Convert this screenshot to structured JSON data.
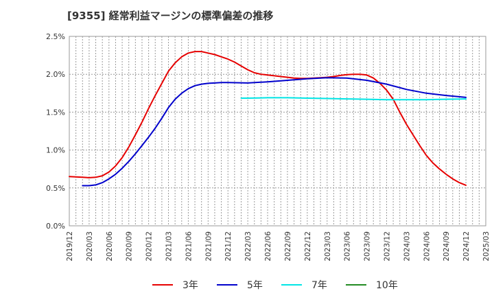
{
  "title": "[9355]  経常利益マージンの標準偏差の推移",
  "chart_data": {
    "type": "line",
    "title": "[9355]  経常利益マージンの標準偏差の推移",
    "xlabel": "",
    "ylabel": "",
    "x_ticks": [
      "2019/12",
      "2020/03",
      "2020/06",
      "2020/09",
      "2020/12",
      "2021/03",
      "2021/06",
      "2021/09",
      "2021/12",
      "2022/03",
      "2022/06",
      "2022/09",
      "2022/12",
      "2023/03",
      "2023/06",
      "2023/09",
      "2023/12",
      "2024/03",
      "2024/06",
      "2024/09",
      "2024/12",
      "2025/03"
    ],
    "y_ticks": [
      "0.0%",
      "0.5%",
      "1.0%",
      "1.5%",
      "2.0%",
      "2.5%"
    ],
    "ylim": [
      0,
      2.5
    ],
    "grid": true,
    "legend_position": "bottom",
    "series": [
      {
        "name": "3年",
        "color": "#e60000",
        "points": [
          [
            "2019/12",
            0.65
          ],
          [
            "2020/01",
            0.645
          ],
          [
            "2020/02",
            0.64
          ],
          [
            "2020/03",
            0.635
          ],
          [
            "2020/04",
            0.64
          ],
          [
            "2020/05",
            0.66
          ],
          [
            "2020/06",
            0.71
          ],
          [
            "2020/07",
            0.79
          ],
          [
            "2020/08",
            0.9
          ],
          [
            "2020/09",
            1.04
          ],
          [
            "2020/10",
            1.2
          ],
          [
            "2020/11",
            1.37
          ],
          [
            "2020/12",
            1.55
          ],
          [
            "2021/01",
            1.72
          ],
          [
            "2021/02",
            1.88
          ],
          [
            "2021/03",
            2.04
          ],
          [
            "2021/04",
            2.15
          ],
          [
            "2021/05",
            2.23
          ],
          [
            "2021/06",
            2.28
          ],
          [
            "2021/07",
            2.3
          ],
          [
            "2021/08",
            2.3
          ],
          [
            "2021/09",
            2.28
          ],
          [
            "2021/10",
            2.26
          ],
          [
            "2021/11",
            2.23
          ],
          [
            "2021/12",
            2.2
          ],
          [
            "2022/01",
            2.16
          ],
          [
            "2022/02",
            2.11
          ],
          [
            "2022/03",
            2.06
          ],
          [
            "2022/04",
            2.02
          ],
          [
            "2022/05",
            2.0
          ],
          [
            "2022/06",
            1.99
          ],
          [
            "2022/07",
            1.98
          ],
          [
            "2022/08",
            1.97
          ],
          [
            "2022/09",
            1.96
          ],
          [
            "2022/10",
            1.95
          ],
          [
            "2022/11",
            1.945
          ],
          [
            "2022/12",
            1.945
          ],
          [
            "2023/01",
            1.95
          ],
          [
            "2023/02",
            1.955
          ],
          [
            "2023/03",
            1.96
          ],
          [
            "2023/04",
            1.97
          ],
          [
            "2023/05",
            1.985
          ],
          [
            "2023/06",
            1.995
          ],
          [
            "2023/07",
            2.0
          ],
          [
            "2023/08",
            2.0
          ],
          [
            "2023/09",
            1.99
          ],
          [
            "2023/10",
            1.95
          ],
          [
            "2023/11",
            1.88
          ],
          [
            "2023/12",
            1.79
          ],
          [
            "2024/01",
            1.67
          ],
          [
            "2024/02",
            1.5
          ],
          [
            "2024/03",
            1.34
          ],
          [
            "2024/04",
            1.2
          ],
          [
            "2024/05",
            1.06
          ],
          [
            "2024/06",
            0.93
          ],
          [
            "2024/07",
            0.83
          ],
          [
            "2024/08",
            0.75
          ],
          [
            "2024/09",
            0.68
          ],
          [
            "2024/10",
            0.62
          ],
          [
            "2024/11",
            0.57
          ],
          [
            "2024/12",
            0.535
          ]
        ]
      },
      {
        "name": "5年",
        "color": "#0000cc",
        "points": [
          [
            "2020/02",
            0.53
          ],
          [
            "2020/03",
            0.53
          ],
          [
            "2020/04",
            0.54
          ],
          [
            "2020/05",
            0.57
          ],
          [
            "2020/06",
            0.62
          ],
          [
            "2020/07",
            0.68
          ],
          [
            "2020/08",
            0.76
          ],
          [
            "2020/09",
            0.85
          ],
          [
            "2020/10",
            0.95
          ],
          [
            "2020/11",
            1.06
          ],
          [
            "2020/12",
            1.17
          ],
          [
            "2021/01",
            1.29
          ],
          [
            "2021/02",
            1.42
          ],
          [
            "2021/03",
            1.56
          ],
          [
            "2021/04",
            1.67
          ],
          [
            "2021/05",
            1.75
          ],
          [
            "2021/06",
            1.81
          ],
          [
            "2021/07",
            1.85
          ],
          [
            "2021/08",
            1.87
          ],
          [
            "2021/09",
            1.88
          ],
          [
            "2021/10",
            1.885
          ],
          [
            "2021/11",
            1.89
          ],
          [
            "2021/12",
            1.89
          ],
          [
            "2022/03",
            1.885
          ],
          [
            "2022/06",
            1.9
          ],
          [
            "2022/09",
            1.92
          ],
          [
            "2022/12",
            1.94
          ],
          [
            "2023/03",
            1.955
          ],
          [
            "2023/06",
            1.95
          ],
          [
            "2023/09",
            1.92
          ],
          [
            "2023/12",
            1.87
          ],
          [
            "2024/03",
            1.8
          ],
          [
            "2024/06",
            1.75
          ],
          [
            "2024/09",
            1.72
          ],
          [
            "2024/12",
            1.695
          ]
        ]
      },
      {
        "name": "7年",
        "color": "#00e5e5",
        "points": [
          [
            "2022/02",
            1.685
          ],
          [
            "2022/03",
            1.685
          ],
          [
            "2022/06",
            1.69
          ],
          [
            "2022/09",
            1.69
          ],
          [
            "2022/12",
            1.685
          ],
          [
            "2023/03",
            1.68
          ],
          [
            "2023/06",
            1.675
          ],
          [
            "2023/09",
            1.67
          ],
          [
            "2023/12",
            1.665
          ],
          [
            "2024/03",
            1.665
          ],
          [
            "2024/06",
            1.665
          ],
          [
            "2024/09",
            1.67
          ],
          [
            "2024/12",
            1.675
          ]
        ]
      },
      {
        "name": "10年",
        "color": "#228b22",
        "points": []
      }
    ]
  }
}
